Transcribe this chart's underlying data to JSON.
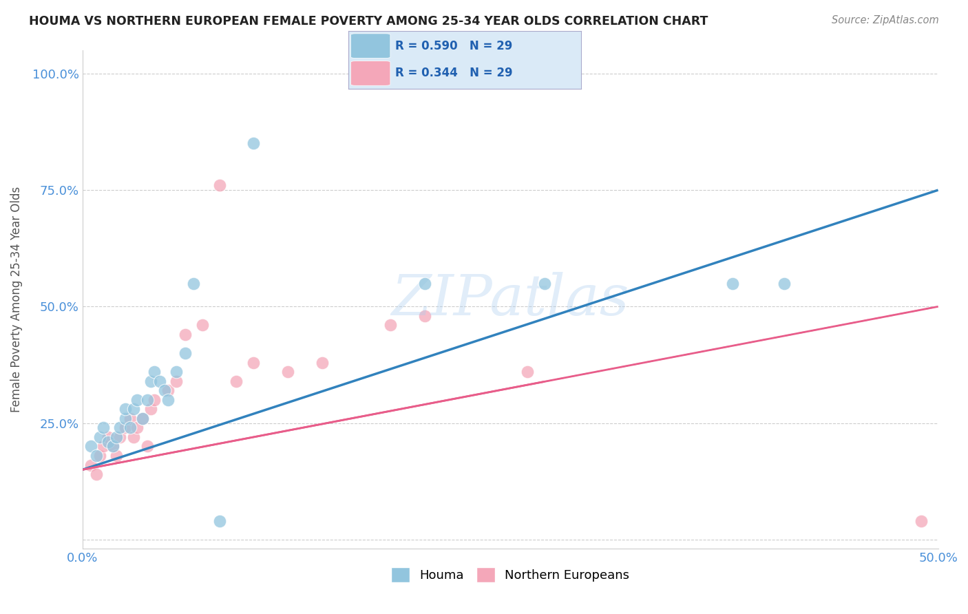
{
  "title": "HOUMA VS NORTHERN EUROPEAN FEMALE POVERTY AMONG 25-34 YEAR OLDS CORRELATION CHART",
  "source": "Source: ZipAtlas.com",
  "ylabel": "Female Poverty Among 25-34 Year Olds",
  "xlim": [
    0.0,
    0.5
  ],
  "ylim": [
    -0.02,
    1.05
  ],
  "houma_R": "0.590",
  "houma_N": "29",
  "ne_R": "0.344",
  "ne_N": "29",
  "houma_color": "#92c5de",
  "ne_color": "#f4a7b9",
  "houma_line_color": "#3182bd",
  "ne_line_color": "#e85d8a",
  "legend_box_color": "#daeaf7",
  "watermark_text": "ZIPatlas",
  "houma_x": [
    0.005,
    0.008,
    0.01,
    0.012,
    0.015,
    0.018,
    0.02,
    0.022,
    0.025,
    0.025,
    0.028,
    0.03,
    0.032,
    0.035,
    0.038,
    0.04,
    0.042,
    0.045,
    0.048,
    0.05,
    0.055,
    0.06,
    0.065,
    0.08,
    0.1,
    0.2,
    0.27,
    0.38,
    0.41
  ],
  "houma_y": [
    0.2,
    0.18,
    0.22,
    0.24,
    0.21,
    0.2,
    0.22,
    0.24,
    0.26,
    0.28,
    0.24,
    0.28,
    0.3,
    0.26,
    0.3,
    0.34,
    0.36,
    0.34,
    0.32,
    0.3,
    0.36,
    0.4,
    0.55,
    0.04,
    0.85,
    0.55,
    0.55,
    0.55,
    0.55
  ],
  "ne_x": [
    0.005,
    0.008,
    0.01,
    0.012,
    0.015,
    0.018,
    0.02,
    0.022,
    0.025,
    0.028,
    0.03,
    0.032,
    0.035,
    0.038,
    0.04,
    0.042,
    0.05,
    0.055,
    0.06,
    0.07,
    0.08,
    0.09,
    0.1,
    0.12,
    0.14,
    0.18,
    0.2,
    0.26,
    0.49
  ],
  "ne_y": [
    0.16,
    0.14,
    0.18,
    0.2,
    0.22,
    0.2,
    0.18,
    0.22,
    0.24,
    0.26,
    0.22,
    0.24,
    0.26,
    0.2,
    0.28,
    0.3,
    0.32,
    0.34,
    0.44,
    0.46,
    0.76,
    0.34,
    0.38,
    0.36,
    0.38,
    0.46,
    0.48,
    0.36,
    0.04
  ],
  "bg_color": "#ffffff",
  "grid_color": "#cccccc",
  "houma_line_x0": 0.0,
  "houma_line_y0": 0.15,
  "houma_line_x1": 0.5,
  "houma_line_y1": 0.75,
  "ne_line_x0": 0.0,
  "ne_line_y0": 0.15,
  "ne_line_x1": 0.5,
  "ne_line_y1": 0.5
}
